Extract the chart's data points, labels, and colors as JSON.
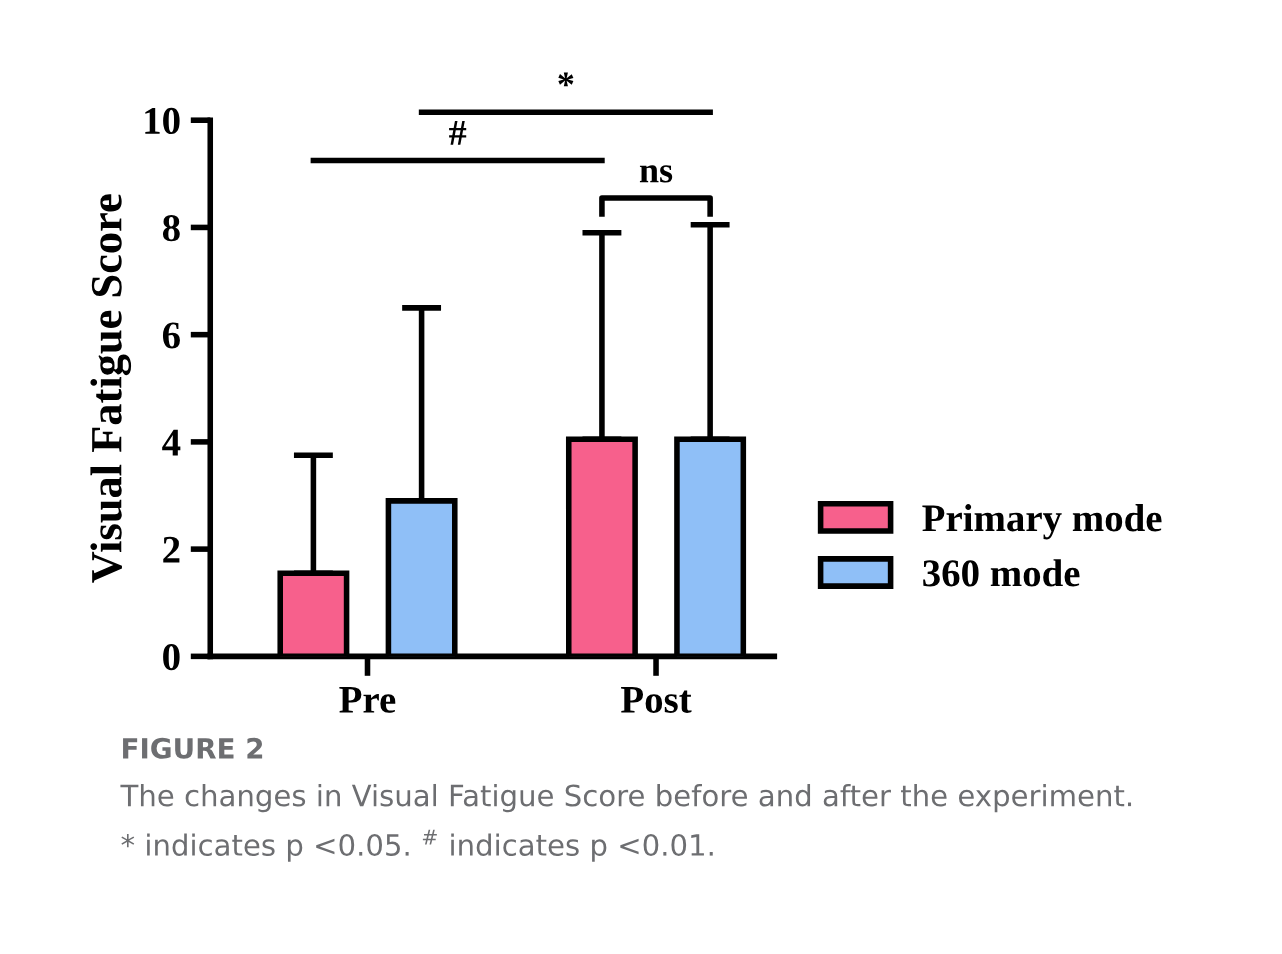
{
  "chart_data": {
    "type": "bar",
    "ylabel": "Visual Fatigue Score",
    "categories": [
      "Pre",
      "Post"
    ],
    "series": [
      {
        "name": "Primary mode",
        "color": "#f7608c",
        "values": [
          1.55,
          4.05
        ],
        "errors": [
          [
            1.55,
            3.75
          ],
          [
            4.05,
            7.9
          ]
        ]
      },
      {
        "name": "360 mode",
        "color": "#8fbff7",
        "values": [
          2.9,
          4.05
        ],
        "errors": [
          [
            2.9,
            6.5
          ],
          [
            4.05,
            8.05
          ]
        ]
      }
    ],
    "ylim": [
      0,
      10
    ],
    "yticks": [
      0,
      2,
      4,
      6,
      8,
      10
    ],
    "grid": false,
    "legend": "right",
    "annotations": [
      "#",
      "*",
      "ns",
      "FIGURE 2",
      "The changes in Visual Fatigue Score before and after the experiment.",
      "* indicates p <0.05. $^{#}$ indicates p <0.01."
    ]
  }
}
